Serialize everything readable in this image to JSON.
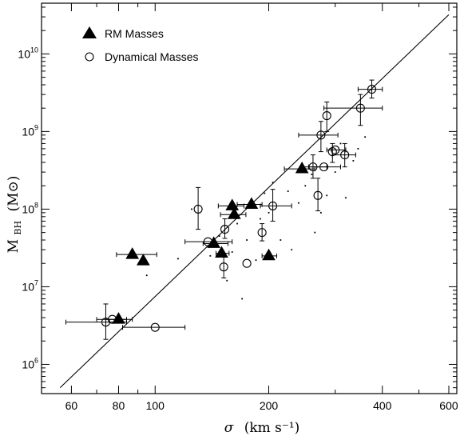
{
  "chart_data": {
    "type": "scatter",
    "xlabel_symbol": "σ",
    "xlabel": "(km s⁻¹)",
    "ylabel_main": "M",
    "ylabel_sub": "BH",
    "ylabel_unit": "(M⊙)",
    "x_scale": "log",
    "y_scale": "log",
    "xlim": [
      50,
      630
    ],
    "ylim": [
      420000.0,
      45000000000.0
    ],
    "x_tick_labels": [
      {
        "v": 60,
        "t": "60"
      },
      {
        "v": 80,
        "t": "80"
      },
      {
        "v": 100,
        "t": "100"
      },
      {
        "v": 200,
        "t": "200"
      },
      {
        "v": 400,
        "t": "400"
      },
      {
        "v": 600,
        "t": "600"
      }
    ],
    "x_minor_ticks": [
      70,
      90,
      300,
      500
    ],
    "y_tick_labels": [
      {
        "v": 1000000.0,
        "base": "10",
        "exp": "6"
      },
      {
        "v": 10000000.0,
        "base": "10",
        "exp": "7"
      },
      {
        "v": 100000000.0,
        "base": "10",
        "exp": "8"
      },
      {
        "v": 1000000000.0,
        "base": "10",
        "exp": "9"
      },
      {
        "v": 10000000000.0,
        "base": "10",
        "exp": "10"
      }
    ],
    "legend": {
      "placement": "top-left",
      "entries": [
        {
          "marker": "filled-triangle",
          "label": "RM Masses"
        },
        {
          "marker": "open-circle",
          "label": "Dynamical Masses"
        }
      ]
    },
    "fit_line": {
      "x": [
        56,
        600
      ],
      "y": [
        500000.0,
        32000000000.0
      ]
    },
    "series": [
      {
        "marker": "filled-triangle",
        "points": [
          {
            "x": 80,
            "y": 3800000.0,
            "xerr": [
              74,
              87
            ]
          },
          {
            "x": 87,
            "y": 26000000.0,
            "xerr": [
              79,
              101
            ]
          },
          {
            "x": 93,
            "y": 21500000.0
          },
          {
            "x": 143,
            "y": 36000000.0,
            "xerr": [
              134,
              156
            ]
          },
          {
            "x": 150,
            "y": 27000000.0,
            "xerr": [
              145,
              157
            ]
          },
          {
            "x": 160,
            "y": 110000000.0,
            "xerr": [
              147,
              172
            ]
          },
          {
            "x": 162,
            "y": 85000000.0,
            "xerr": [
              149,
              174
            ]
          },
          {
            "x": 180,
            "y": 115000000.0,
            "xerr": [
              165,
              192
            ]
          },
          {
            "x": 200,
            "y": 25000000.0,
            "xerr": [
              192,
              210
            ]
          },
          {
            "x": 245,
            "y": 330000000.0,
            "xerr": [
              220,
              265
            ]
          }
        ]
      },
      {
        "marker": "open-circle",
        "points": [
          {
            "x": 74,
            "y": 3500000.0,
            "xerr": [
              58,
              84
            ],
            "yerr": [
              2100000.0,
              6000000.0
            ]
          },
          {
            "x": 77,
            "y": 3800000.0,
            "xerr": [
              70,
              84
            ]
          },
          {
            "x": 100,
            "y": 3000000.0,
            "xerr": [
              82,
              120
            ]
          },
          {
            "x": 130,
            "y": 100000000.0,
            "yerr": [
              55000000.0,
              190000000.0
            ]
          },
          {
            "x": 138,
            "y": 38000000.0,
            "xerr": [
              120,
              160
            ]
          },
          {
            "x": 152,
            "y": 18000000.0,
            "yerr": [
              13000000.0,
              24000000.0
            ]
          },
          {
            "x": 153,
            "y": 55000000.0,
            "yerr": [
              42000000.0,
              75000000.0
            ]
          },
          {
            "x": 175,
            "y": 20000000.0
          },
          {
            "x": 192,
            "y": 50000000.0,
            "yerr": [
              39000000.0,
              65000000.0
            ]
          },
          {
            "x": 205,
            "y": 110000000.0,
            "xerr": [
              190,
              230
            ],
            "yerr": [
              70000000.0,
              180000000.0
            ]
          },
          {
            "x": 262,
            "y": 350000000.0,
            "xerr": [
              245,
              285
            ],
            "yerr": [
              250000000.0,
              500000000.0
            ]
          },
          {
            "x": 270,
            "y": 150000000.0,
            "yerr": [
              95000000.0,
              250000000.0
            ]
          },
          {
            "x": 275,
            "y": 900000000.0,
            "xerr": [
              240,
              305
            ],
            "yerr": [
              550000000.0,
              1350000000.0
            ]
          },
          {
            "x": 280,
            "y": 350000000.0,
            "xerr": [
              255,
              310
            ]
          },
          {
            "x": 285,
            "y": 1600000000.0,
            "yerr": [
              1000000000.0,
              2400000000.0
            ]
          },
          {
            "x": 295,
            "y": 550000000.0,
            "yerr": [
              400000000.0,
              700000000.0
            ]
          },
          {
            "x": 300,
            "y": 580000000.0,
            "xerr": [
              285,
              320
            ]
          },
          {
            "x": 318,
            "y": 500000000.0,
            "xerr": [
              295,
              340
            ],
            "yerr": [
              350000000.0,
              700000000.0
            ]
          },
          {
            "x": 350,
            "y": 2000000000.0,
            "xerr": [
              280,
              400
            ],
            "yerr": [
              1200000000.0,
              3000000000.0
            ]
          },
          {
            "x": 375,
            "y": 3500000000.0,
            "xerr": [
              345,
              400
            ],
            "yerr": [
              2700000000.0,
              4600000000.0
            ]
          }
        ]
      }
    ],
    "scatter_dots": [
      [
        95,
        14000000.0
      ],
      [
        115,
        23000000.0
      ],
      [
        125,
        100000000.0
      ],
      [
        140,
        25000000.0
      ],
      [
        148,
        45000000.0
      ],
      [
        155,
        12000000.0
      ],
      [
        160,
        28000000.0
      ],
      [
        165,
        65000000.0
      ],
      [
        170,
        7000000.0
      ],
      [
        175,
        40000000.0
      ],
      [
        185,
        22000000.0
      ],
      [
        190,
        75000000.0
      ],
      [
        200,
        90000000.0
      ],
      [
        205,
        220000000.0
      ],
      [
        215,
        40000000.0
      ],
      [
        225,
        170000000.0
      ],
      [
        240,
        120000000.0
      ],
      [
        250,
        200000000.0
      ],
      [
        260,
        280000000.0
      ],
      [
        265,
        50000000.0
      ],
      [
        275,
        90000000.0
      ],
      [
        285,
        150000000.0
      ],
      [
        300,
        300000000.0
      ],
      [
        310,
        700000000.0
      ],
      [
        320,
        140000000.0
      ],
      [
        335,
        420000000.0
      ],
      [
        345,
        600000000.0
      ],
      [
        360,
        850000000.0
      ],
      [
        230,
        30000000.0
      ],
      [
        195,
        160000000.0
      ]
    ]
  }
}
